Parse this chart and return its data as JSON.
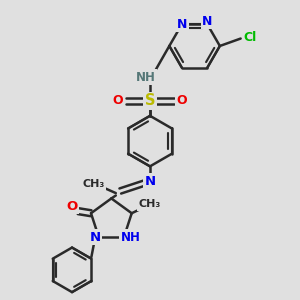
{
  "bg_color": "#e0e0e0",
  "bond_color": "#2a2a2a",
  "bond_width": 1.8,
  "atom_colors": {
    "N": "#0000ee",
    "O": "#ee0000",
    "S": "#bbbb00",
    "Cl": "#00bb00",
    "NH": "#557777",
    "C": "#2a2a2a"
  },
  "fs": 8.5
}
